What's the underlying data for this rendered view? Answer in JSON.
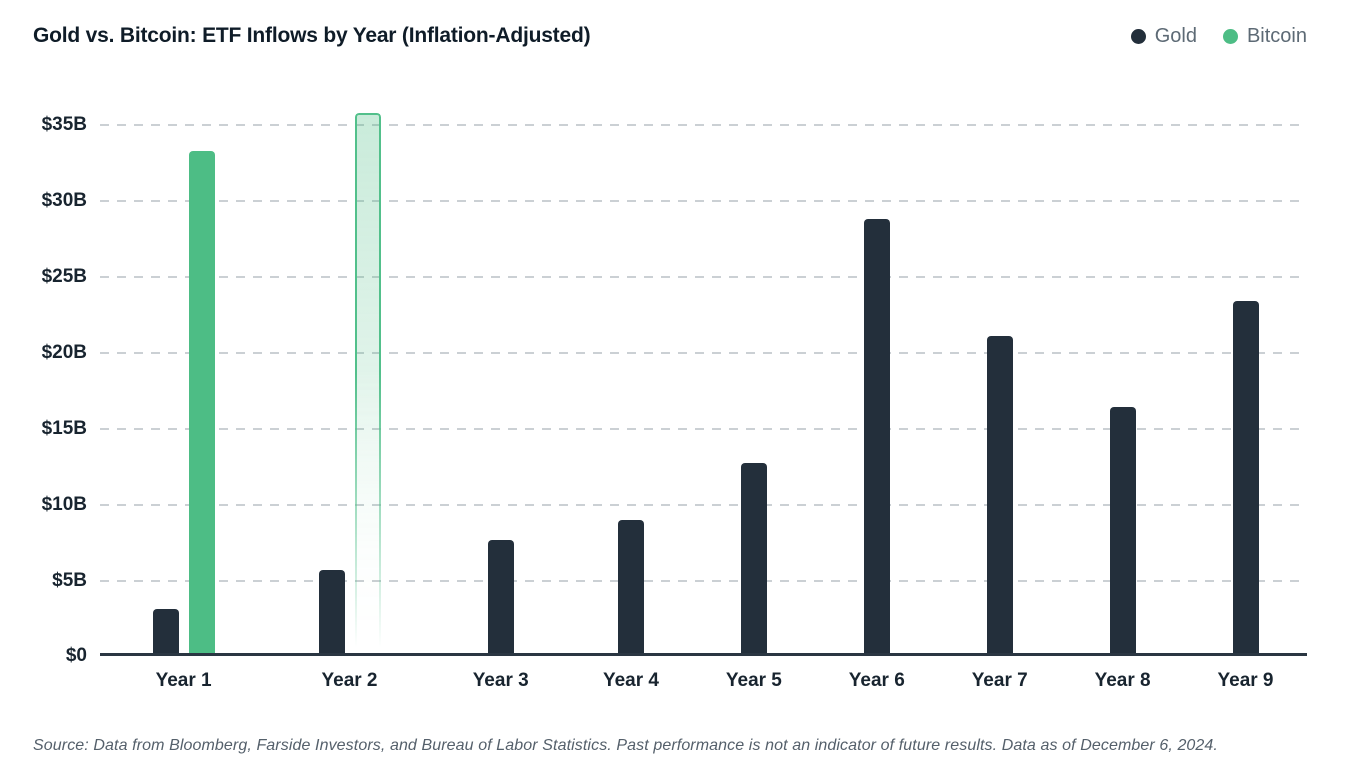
{
  "header": {
    "title": "Gold vs. Bitcoin: ETF Inflows by Year (Inflation-Adjusted)",
    "legend": [
      {
        "label": "Gold",
        "color": "#232f3b"
      },
      {
        "label": "Bitcoin",
        "color": "#4dbd85"
      }
    ]
  },
  "chart_data": {
    "type": "bar",
    "title": "Gold vs. Bitcoin: ETF Inflows by Year (Inflation-Adjusted)",
    "unit": "USD billions, inflation-adjusted",
    "categories": [
      "Year 1",
      "Year 2",
      "Year 3",
      "Year 4",
      "Year 5",
      "Year 6",
      "Year 7",
      "Year 8",
      "Year 9"
    ],
    "series": [
      {
        "name": "Gold",
        "color": "#232f3b",
        "values": [
          2.9,
          5.5,
          7.5,
          8.8,
          12.6,
          28.7,
          21.0,
          16.3,
          23.3
        ]
      },
      {
        "name": "Bitcoin",
        "color": "#4dbd85",
        "values": [
          33.2,
          35.7,
          null,
          null,
          null,
          null,
          null,
          null,
          null
        ],
        "projected": [
          false,
          true,
          false,
          false,
          false,
          false,
          false,
          false,
          false
        ]
      }
    ],
    "yticks": [
      "$35B",
      "$30B",
      "$25B",
      "$20B",
      "$15B",
      "$10B",
      "$5B",
      "$0"
    ],
    "ylim": [
      0,
      35
    ],
    "xlabel": "",
    "ylabel": "",
    "grid": "horizontal-dashed",
    "legend_position": "top-right"
  },
  "footer": {
    "source": "Source: Data from Bloomberg, Farside Investors, and Bureau of Labor Statistics. Past performance is not an indicator of future results. Data as of December 6, 2024."
  }
}
